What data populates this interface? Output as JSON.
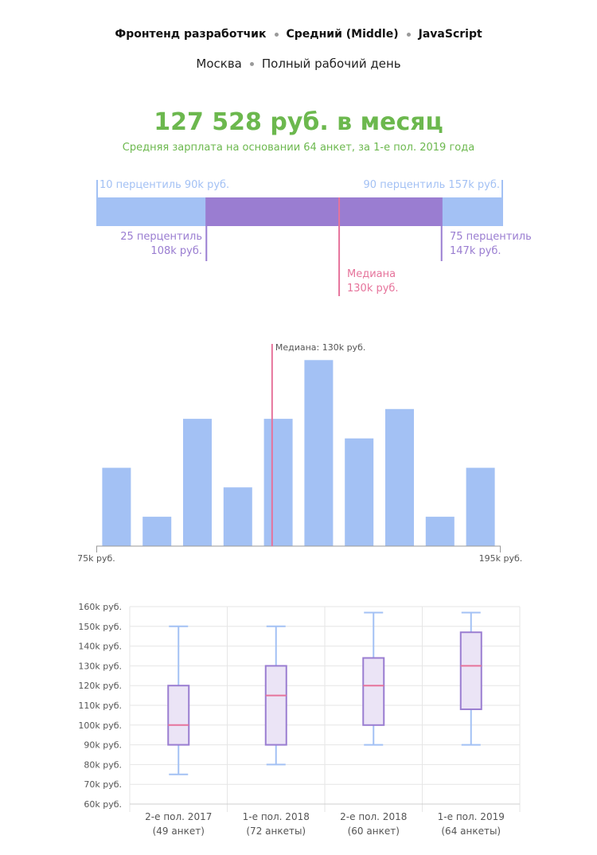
{
  "header": {
    "position": "Фронтенд разработчик",
    "level": "Средний (Middle)",
    "language": "JavaScript",
    "city": "Москва",
    "schedule": "Полный рабочий день"
  },
  "summary": {
    "salary": "127 528 руб. в месяц",
    "subtitle": "Средняя зарплата на основании 64 анкет, за 1-е пол. 2019 года"
  },
  "colors": {
    "green": "#6cb84e",
    "light_blue": "#a3c1f4",
    "purple": "#9a7dd1",
    "pink": "#e6739b"
  },
  "percentile_bar": {
    "p10": {
      "label": "10 перцентиль 90k руб.",
      "value": 90
    },
    "p25": {
      "label_1": "25 перцентиль",
      "label_2": "108k руб.",
      "value": 108
    },
    "median": {
      "label_1": "Медиана",
      "label_2": "130k руб.",
      "value": 130
    },
    "p75": {
      "label_1": "75 перцентиль",
      "label_2": "147k руб.",
      "value": 147
    },
    "p90": {
      "label": "90 перцентиль 157k руб.",
      "value": 157
    }
  },
  "chart_data": [
    {
      "type": "bar",
      "title": "",
      "x_min_label": "75k руб.",
      "x_max_label": "195k руб.",
      "xlim": [
        75,
        195
      ],
      "bins": 10,
      "values": [
        8,
        3,
        13,
        6,
        13,
        19,
        11,
        14,
        3,
        8
      ],
      "median_value": 130,
      "median_label": "Медиана: 130k руб."
    },
    {
      "type": "box",
      "ylim": [
        60,
        160
      ],
      "y_ticks": [
        "60k руб.",
        "70k руб.",
        "80k руб.",
        "90k руб.",
        "100k руб.",
        "110k руб.",
        "120k руб.",
        "130k руб.",
        "140k руб.",
        "150k руб.",
        "160k руб."
      ],
      "y_tick_values": [
        60,
        70,
        80,
        90,
        100,
        110,
        120,
        130,
        140,
        150,
        160
      ],
      "categories": [
        {
          "label": "2-е пол. 2017",
          "count": "(49 анкет)",
          "min": 75,
          "q1": 90,
          "median": 100,
          "q3": 120,
          "max": 150
        },
        {
          "label": "1-е пол. 2018",
          "count": "(72 анкеты)",
          "min": 80,
          "q1": 90,
          "median": 115,
          "q3": 130,
          "max": 150
        },
        {
          "label": "2-е пол. 2018",
          "count": "(60 анкет)",
          "min": 90,
          "q1": 100,
          "median": 120,
          "q3": 134,
          "max": 157
        },
        {
          "label": "1-е пол. 2019",
          "count": "(64 анкеты)",
          "min": 90,
          "q1": 108,
          "median": 130,
          "q3": 147,
          "max": 157
        }
      ]
    }
  ]
}
